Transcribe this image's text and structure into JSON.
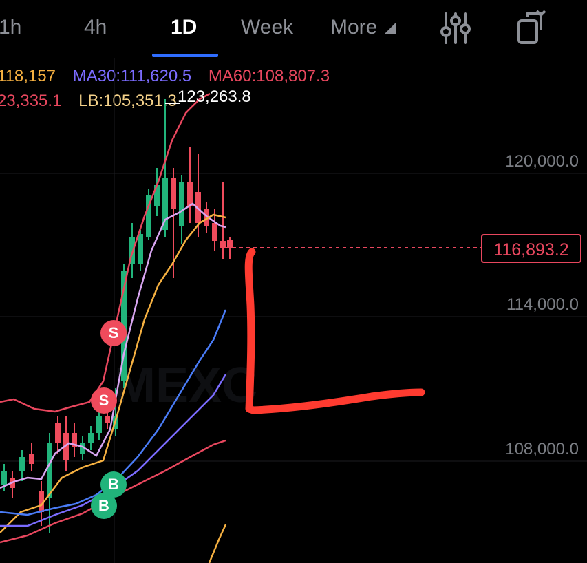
{
  "tabs": [
    "1h",
    "4h",
    "1D",
    "Week",
    "More"
  ],
  "active_tab": "1D",
  "indicators": {
    "ma_row1": {
      "ma_prev": "118,157",
      "ma30": "MA30:111,620.5",
      "ma60": "MA60:108,807.3"
    },
    "ma_row2": {
      "ub": "23,335.1",
      "lb": "LB:105,351.3"
    }
  },
  "high_price_label": "123,263.8",
  "price_axis": [
    "120,000.0",
    "114,000.0",
    "108,000.0"
  ],
  "current_price": "116,893.2",
  "signals": [
    {
      "label": "S",
      "color": "#ef4b5c"
    },
    {
      "label": "S",
      "color": "#ef4b5c"
    },
    {
      "label": "B",
      "color": "#21b47b"
    },
    {
      "label": "B",
      "color": "#21b47b"
    }
  ],
  "watermark": "MEXC",
  "colors": {
    "up": "#21b47b",
    "down": "#ef4b5c",
    "ma30": "#7b6cff",
    "ma60": "#e8475e",
    "lb": "#f5b041",
    "accent": "#2f6dff",
    "annotation": "#ff3b30"
  },
  "icons": [
    "indicator-settings-icon",
    "copy-rotate-icon"
  ]
}
